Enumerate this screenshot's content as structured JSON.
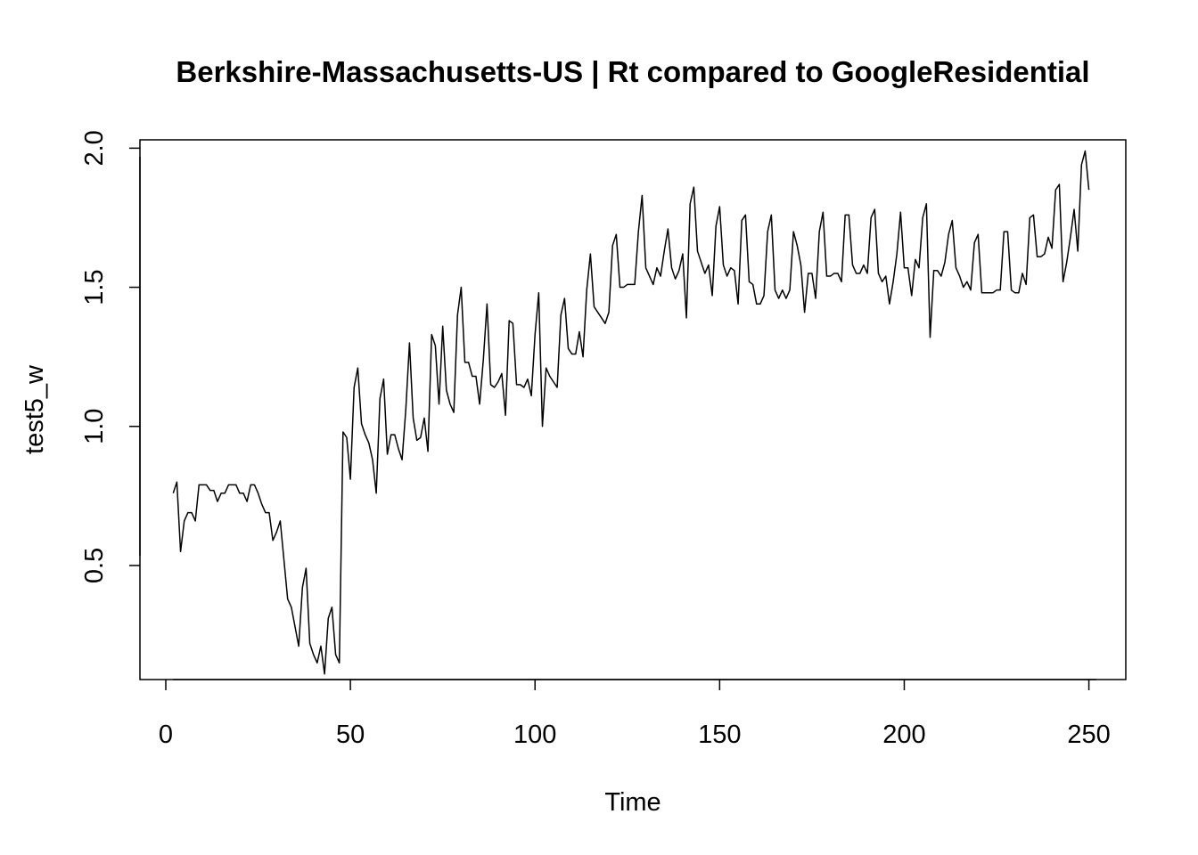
{
  "chart_data": {
    "type": "line",
    "title": "Berkshire-Massachusetts-US | Rt compared to GoogleResidential",
    "xlabel": "Time",
    "ylabel": "test5_w",
    "xlim": [
      -7,
      260
    ],
    "ylim": [
      0.09,
      2.03
    ],
    "xticks": [
      0,
      50,
      100,
      150,
      200,
      250
    ],
    "xtick_labels": [
      "0",
      "50",
      "100",
      "150",
      "200",
      "250"
    ],
    "yticks": [
      0.5,
      1.0,
      1.5,
      2.0
    ],
    "ytick_labels": [
      "0.5",
      "1.0",
      "1.5",
      "2.0"
    ],
    "grid": false,
    "series": [
      {
        "x_start": 2,
        "values": [
          0.76,
          0.8,
          0.55,
          0.66,
          0.69,
          0.69,
          0.66,
          0.79,
          0.79,
          0.79,
          0.77,
          0.77,
          0.73,
          0.76,
          0.76,
          0.79,
          0.79,
          0.79,
          0.76,
          0.76,
          0.73,
          0.79,
          0.79,
          0.76,
          0.72,
          0.69,
          0.69,
          0.59,
          0.62,
          0.66,
          0.52,
          0.38,
          0.35,
          0.28,
          0.21,
          0.42,
          0.49,
          0.22,
          0.18,
          0.15,
          0.21,
          0.11,
          0.31,
          0.35,
          0.18,
          0.15,
          0.98,
          0.96,
          0.81,
          1.14,
          1.21,
          1.01,
          0.97,
          0.94,
          0.88,
          0.76,
          1.1,
          1.17,
          0.9,
          0.97,
          0.97,
          0.92,
          0.88,
          1.06,
          1.3,
          1.03,
          0.95,
          0.96,
          1.03,
          0.91,
          1.33,
          1.29,
          1.08,
          1.36,
          1.13,
          1.08,
          1.05,
          1.4,
          1.5,
          1.23,
          1.23,
          1.18,
          1.18,
          1.08,
          1.24,
          1.44,
          1.15,
          1.14,
          1.16,
          1.19,
          1.04,
          1.38,
          1.37,
          1.15,
          1.15,
          1.14,
          1.17,
          1.11,
          1.33,
          1.48,
          1.0,
          1.21,
          1.18,
          1.16,
          1.14,
          1.4,
          1.46,
          1.28,
          1.26,
          1.26,
          1.34,
          1.25,
          1.49,
          1.62,
          1.43,
          1.41,
          1.39,
          1.37,
          1.41,
          1.65,
          1.69,
          1.5,
          1.5,
          1.51,
          1.51,
          1.51,
          1.7,
          1.83,
          1.57,
          1.54,
          1.51,
          1.57,
          1.54,
          1.63,
          1.71,
          1.57,
          1.53,
          1.56,
          1.62,
          1.39,
          1.8,
          1.86,
          1.63,
          1.59,
          1.55,
          1.58,
          1.47,
          1.72,
          1.79,
          1.58,
          1.54,
          1.57,
          1.56,
          1.44,
          1.74,
          1.76,
          1.52,
          1.51,
          1.44,
          1.44,
          1.47,
          1.7,
          1.76,
          1.49,
          1.46,
          1.49,
          1.46,
          1.49,
          1.7,
          1.65,
          1.58,
          1.41,
          1.55,
          1.55,
          1.46,
          1.7,
          1.77,
          1.54,
          1.54,
          1.55,
          1.55,
          1.52,
          1.76,
          1.76,
          1.58,
          1.55,
          1.55,
          1.58,
          1.55,
          1.75,
          1.78,
          1.55,
          1.52,
          1.54,
          1.44,
          1.52,
          1.62,
          1.77,
          1.57,
          1.57,
          1.47,
          1.6,
          1.57,
          1.75,
          1.8,
          1.32,
          1.56,
          1.56,
          1.54,
          1.59,
          1.69,
          1.74,
          1.57,
          1.54,
          1.5,
          1.52,
          1.49,
          1.66,
          1.69,
          1.48,
          1.48,
          1.48,
          1.48,
          1.49,
          1.49,
          1.7,
          1.7,
          1.49,
          1.48,
          1.48,
          1.55,
          1.51,
          1.75,
          1.76,
          1.61,
          1.61,
          1.62,
          1.68,
          1.64,
          1.85,
          1.87,
          1.52,
          1.59,
          1.68,
          1.78,
          1.63,
          1.94,
          1.99,
          1.85
        ]
      }
    ]
  }
}
